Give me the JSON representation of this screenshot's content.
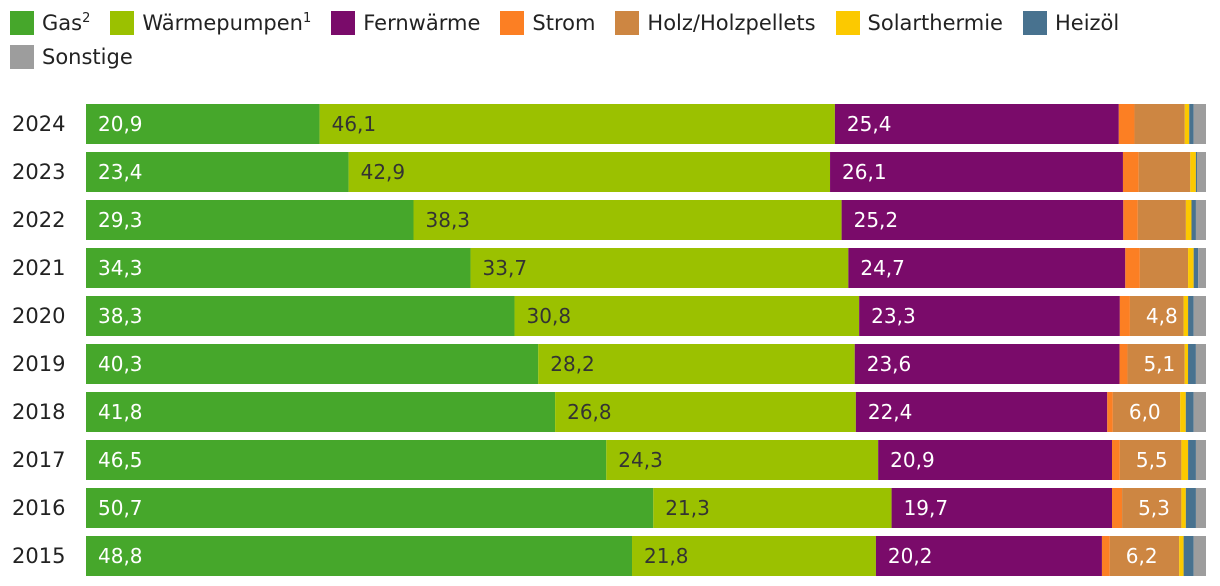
{
  "chart_data": {
    "type": "bar",
    "orientation": "horizontal",
    "stacked": true,
    "unit": "%",
    "categories": [
      "2024",
      "2023",
      "2022",
      "2021",
      "2020",
      "2019",
      "2018",
      "2017",
      "2016",
      "2015"
    ],
    "series": [
      {
        "name": "Gas",
        "sup": "2",
        "color": "#46a72b",
        "label_color": "#ffffff",
        "values": [
          20.9,
          23.4,
          29.3,
          34.3,
          38.3,
          40.3,
          41.8,
          46.5,
          50.7,
          48.8
        ],
        "labels": [
          "20,9",
          "23,4",
          "29,3",
          "34,3",
          "38,3",
          "40,3",
          "41,8",
          "46,5",
          "50,7",
          "48,8"
        ]
      },
      {
        "name": "Wärmepumpen",
        "sup": "1",
        "color": "#9bc100",
        "label_color": "#333333",
        "values": [
          46.1,
          42.9,
          38.3,
          33.7,
          30.8,
          28.2,
          26.8,
          24.3,
          21.3,
          21.8
        ],
        "labels": [
          "46,1",
          "42,9",
          "38,3",
          "33,7",
          "30,8",
          "28,2",
          "26,8",
          "24,3",
          "21,3",
          "21,8"
        ]
      },
      {
        "name": "Fernwärme",
        "sup": "",
        "color": "#7a0b6a",
        "label_color": "#ffffff",
        "values": [
          25.4,
          26.1,
          25.2,
          24.7,
          23.3,
          23.6,
          22.4,
          20.9,
          19.7,
          20.2
        ],
        "labels": [
          "25,4",
          "26,1",
          "25,2",
          "24,7",
          "23,3",
          "23,6",
          "22,4",
          "20,9",
          "19,7",
          "20,2"
        ]
      },
      {
        "name": "Strom",
        "sup": "",
        "color": "#fc7f23",
        "label_color": "#ffffff",
        "values": [
          1.4,
          1.4,
          1.3,
          1.3,
          0.9,
          0.7,
          0.5,
          0.7,
          0.9,
          0.7
        ],
        "labels": [
          "",
          "",
          "",
          "",
          "",
          "",
          "",
          "",
          "",
          ""
        ]
      },
      {
        "name": "Holz/Holzpellets",
        "sup": "",
        "color": "#cd8642",
        "label_color": "#ffffff",
        "values": [
          4.5,
          4.6,
          4.3,
          4.3,
          4.8,
          5.1,
          6.0,
          5.5,
          5.3,
          6.2
        ],
        "labels": [
          "",
          "",
          "",
          "",
          "4,8",
          "5,1",
          "6,0",
          "5,5",
          "5,3",
          "6,2"
        ]
      },
      {
        "name": "Solarthermie",
        "sup": "",
        "color": "#fcc900",
        "label_color": "#333333",
        "values": [
          0.4,
          0.5,
          0.5,
          0.5,
          0.4,
          0.3,
          0.5,
          0.6,
          0.4,
          0.4
        ],
        "labels": [
          "",
          "",
          "",
          "",
          "",
          "",
          "",
          "",
          "",
          ""
        ]
      },
      {
        "name": "Heizöl",
        "sup": "",
        "color": "#48728f",
        "label_color": "#ffffff",
        "values": [
          0.4,
          0.1,
          0.4,
          0.4,
          0.5,
          0.7,
          0.7,
          0.7,
          0.9,
          0.9
        ],
        "labels": [
          "",
          "",
          "",
          "",
          "",
          "",
          "",
          "",
          "",
          ""
        ]
      },
      {
        "name": "Sonstige",
        "sup": "",
        "color": "#9d9d9d",
        "label_color": "#333333",
        "values": [
          1.1,
          0.8,
          0.9,
          0.7,
          1.1,
          0.9,
          1.1,
          0.9,
          0.9,
          1.1
        ],
        "labels": [
          "",
          "",
          "",
          "",
          "",
          "",
          "",
          "",
          "",
          ""
        ]
      }
    ],
    "xlim": [
      0,
      100
    ],
    "legend_position": "top-left",
    "grid": false
  }
}
